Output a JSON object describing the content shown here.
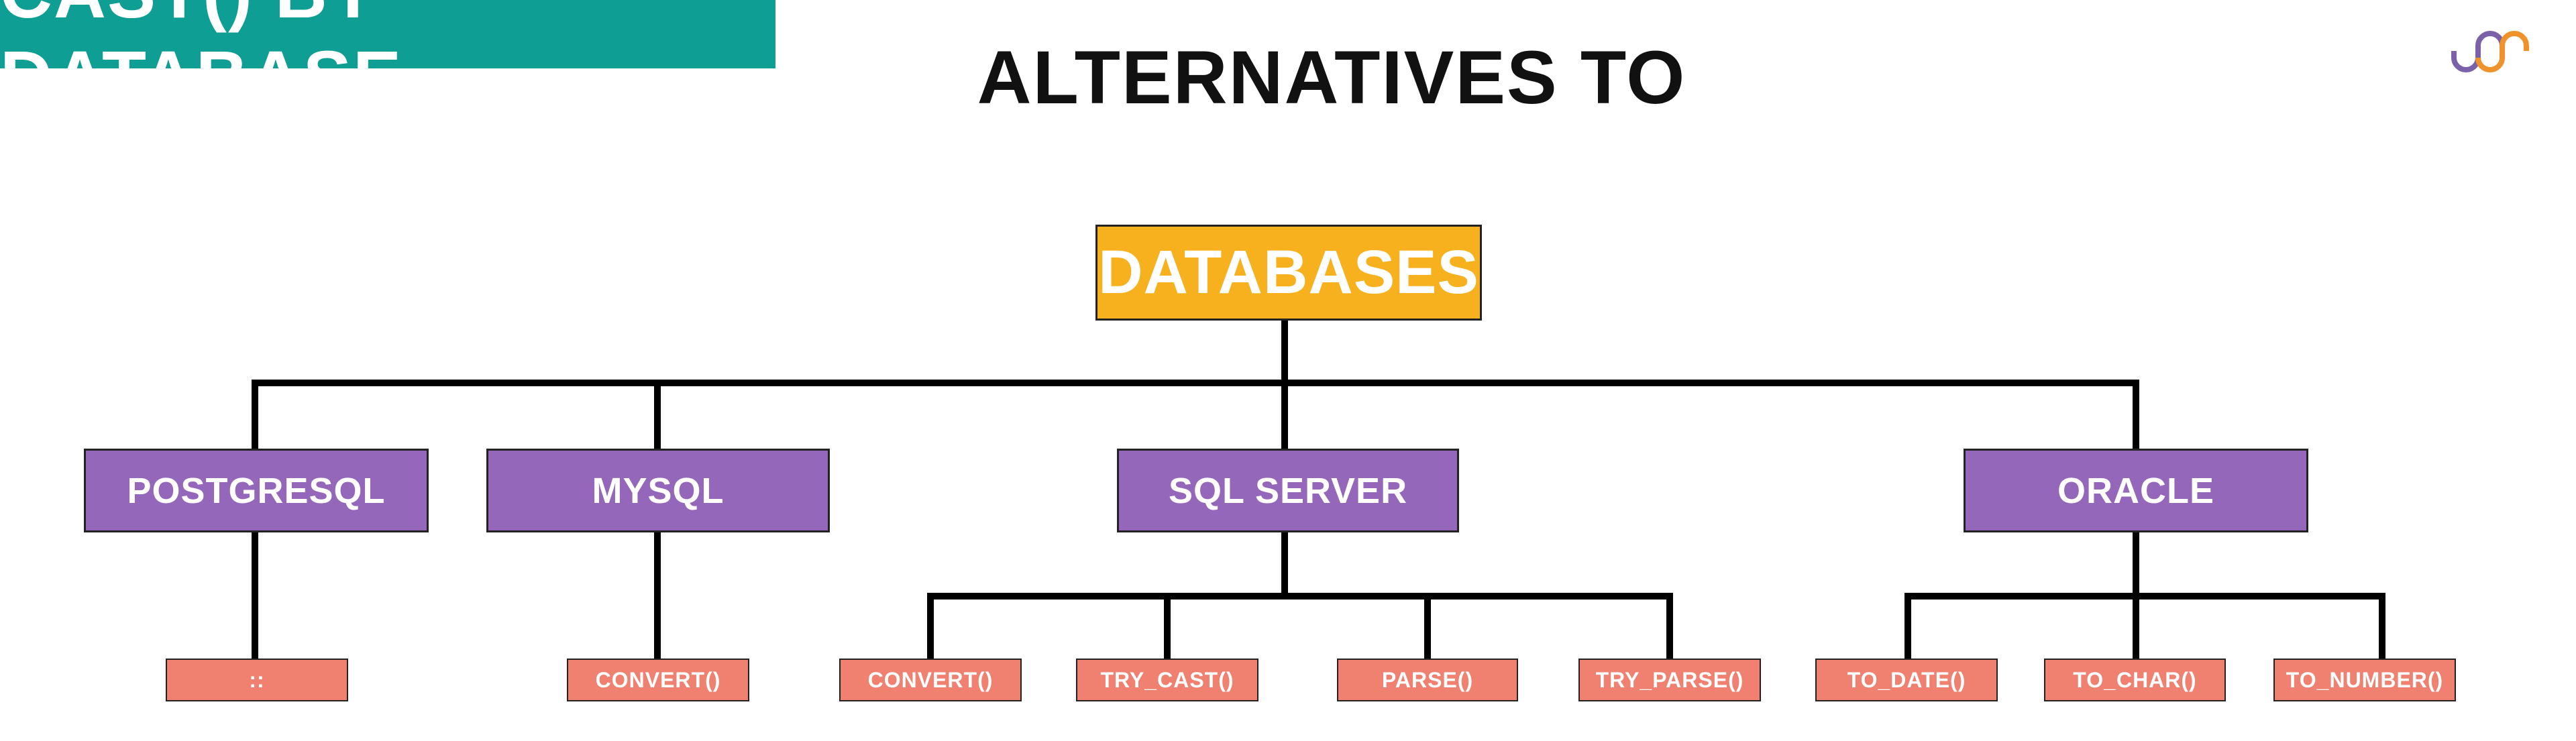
{
  "title": {
    "line1": "ALTERNATIVES TO",
    "line2": "CAST() BY DATABASE"
  },
  "colors": {
    "teal": "#0f9e93",
    "root": "#f7b11e",
    "database": "#9467bb",
    "function": "#f08070"
  },
  "logo": {
    "icon": "wave-logo-icon",
    "colors": [
      "#7b62a8",
      "#f0922a"
    ]
  },
  "root": {
    "label": "DATABASES"
  },
  "databases": [
    {
      "label": "POSTGRESQL",
      "functions": [
        "::"
      ]
    },
    {
      "label": "MYSQL",
      "functions": [
        "CONVERT()"
      ]
    },
    {
      "label": "SQL SERVER",
      "functions": [
        "CONVERT()",
        "TRY_CAST()",
        "PARSE()",
        "TRY_PARSE()"
      ]
    },
    {
      "label": "ORACLE",
      "functions": [
        "TO_DATE()",
        "TO_CHAR()",
        "TO_NUMBER()"
      ]
    }
  ]
}
